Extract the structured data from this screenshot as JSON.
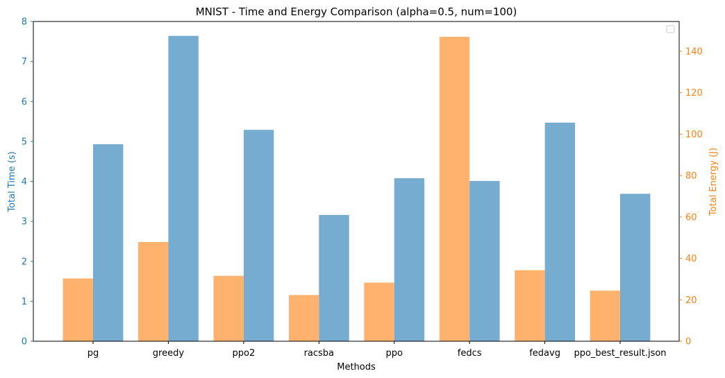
{
  "chart_data": {
    "type": "bar",
    "title": "MNIST - Time and Energy Comparison (alpha=0.5, num=100)",
    "xlabel": "Methods",
    "categories": [
      "pg",
      "greedy",
      "ppo2",
      "racsba",
      "ppo",
      "fedcs",
      "fedavg",
      "ppo_best_result.json"
    ],
    "y_left": {
      "label": "Total Time (s)",
      "color": "#1f77b4",
      "lim": [
        0,
        8
      ],
      "ticks": [
        "0",
        "1",
        "2",
        "3",
        "4",
        "5",
        "6",
        "7",
        "8"
      ]
    },
    "y_right": {
      "label": "Total Energy (J)",
      "color": "#ff7f0e",
      "lim": [
        0,
        154.4
      ],
      "ticks": [
        "0",
        "20",
        "40",
        "60",
        "80",
        "100",
        "120",
        "140"
      ]
    },
    "series": [
      {
        "axis": "right",
        "color": "#ffb26e",
        "values": [
          30.3,
          47.9,
          31.6,
          22.3,
          28.3,
          147.0,
          34.3,
          24.4
        ]
      },
      {
        "axis": "left",
        "color": "#77acd1",
        "values": [
          4.93,
          7.64,
          5.29,
          3.16,
          4.08,
          4.01,
          5.47,
          3.69
        ]
      }
    ],
    "legend": {
      "position": "top-right",
      "entries": []
    },
    "grid": false
  }
}
